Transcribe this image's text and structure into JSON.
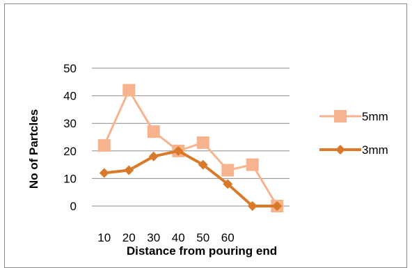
{
  "chart_data": {
    "type": "line",
    "title": "",
    "xlabel": "Distance from pouring end",
    "ylabel": "No of Partcles",
    "x_tick_labels": [
      "10",
      "20",
      "30",
      "40",
      "50",
      "60"
    ],
    "y_tick_labels": [
      "0",
      "10",
      "20",
      "30",
      "40",
      "50"
    ],
    "ylim": [
      0,
      50
    ],
    "grid": true,
    "legend_position": "right",
    "series": [
      {
        "name": "5mm",
        "color": "#f7b38e",
        "marker": "square",
        "values": [
          22,
          42,
          27,
          20,
          23,
          13,
          15,
          0
        ]
      },
      {
        "name": "3mm",
        "color": "#d97a2b",
        "marker": "diamond",
        "values": [
          12,
          13,
          18,
          20,
          15,
          8,
          0,
          0
        ]
      }
    ]
  }
}
